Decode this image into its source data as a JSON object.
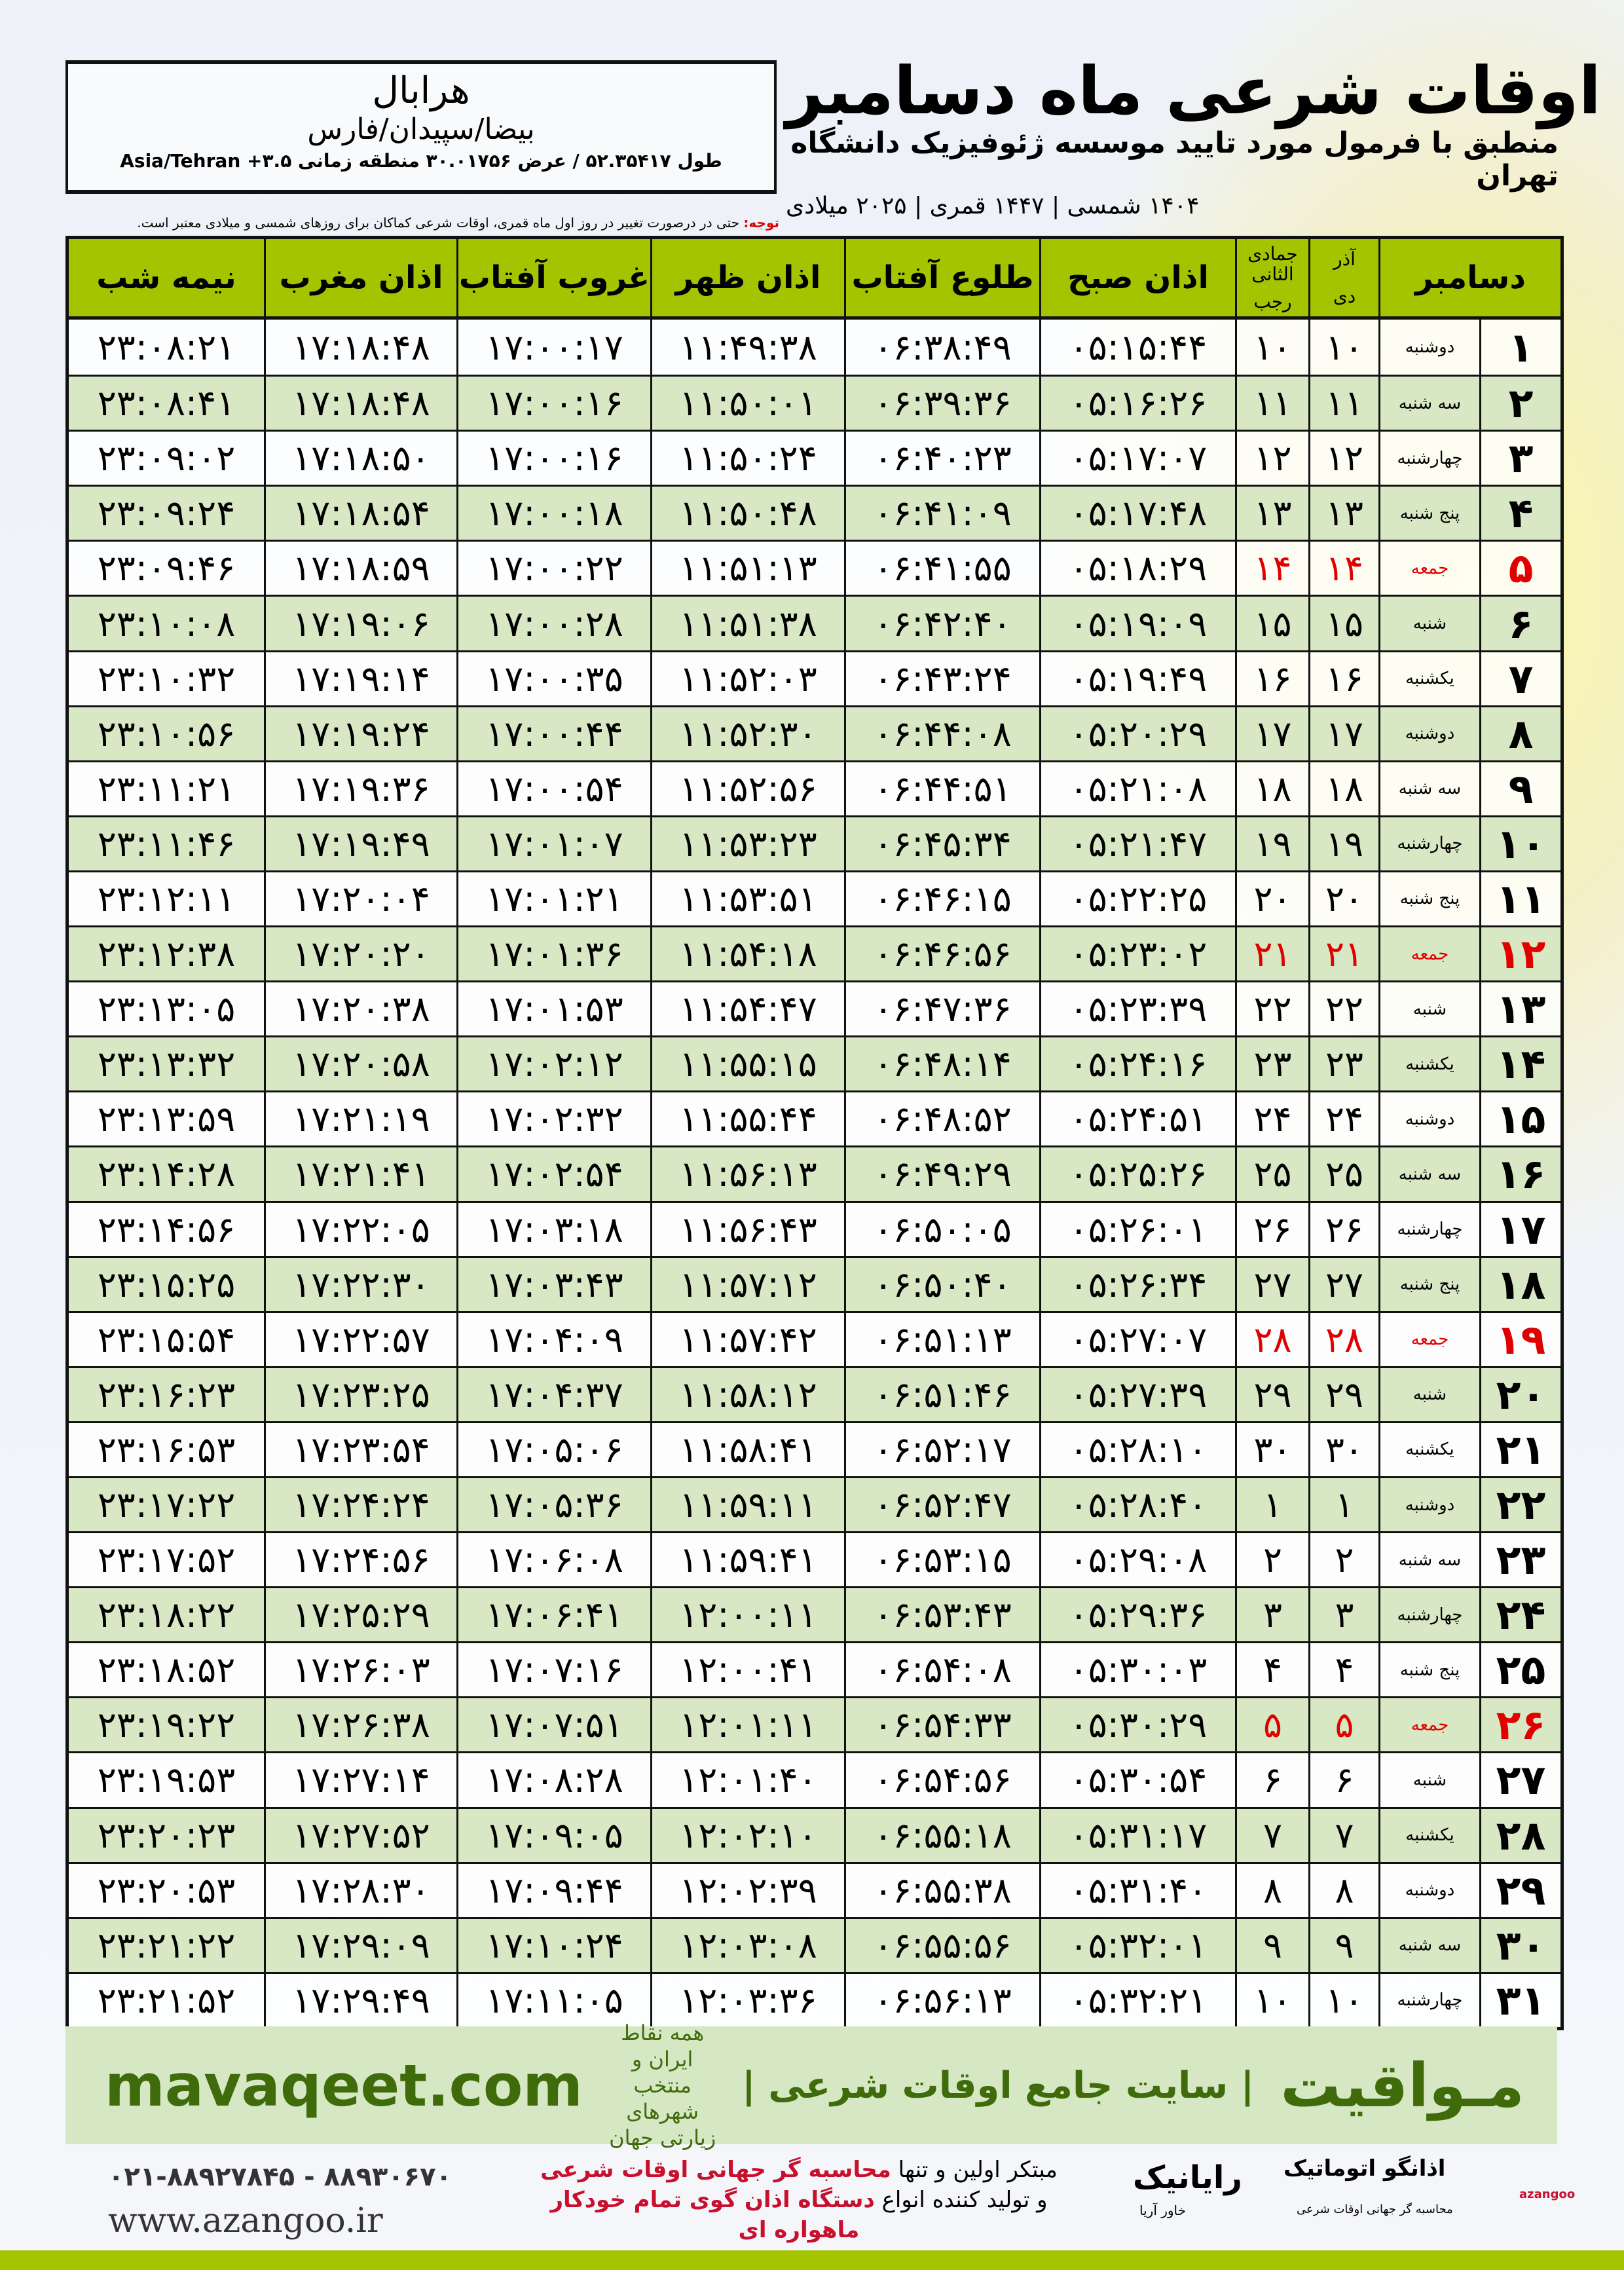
{
  "location": {
    "city": "هرابال",
    "region": "بیضا/سپیدان/فارس",
    "coords": "طول ۵۲.۳۵۴۱۷ / عرض ۳۰.۰۱۷۵۶ منطقه زمانی ۳.۵+ Asia/Tehran"
  },
  "header": {
    "title": "اوقات شرعی ماه دسامبر",
    "subtitle": "منطبق با فرمول مورد تایید موسسه ژئوفیزیک دانشگاه تهران",
    "dateline": "۱۴۰۴ شمسی | ۱۴۴۷ قمری | ۲۰۲۵ میلادی"
  },
  "note": {
    "label": "توجه:",
    "text": " حتی در درصورت تغییر در روز اول ماه قمری، اوقات شرعی کماکان برای روزهای شمسی و میلادی معتبر است."
  },
  "colors": {
    "header_green": "#a4c400",
    "row_green": "#d9e8c4",
    "friday_red": "#e00000",
    "brand_green": "#3f6b0b"
  },
  "table": {
    "columns": {
      "midnight": "نیمه شب",
      "maghrib": "اذان مغرب",
      "sunset": "غروب آفتاب",
      "dhuhr": "اذان ظهر",
      "sunrise": "طلوع آفتاب",
      "fajr": "اذان صبح",
      "hijri_top": "جمادی الثانی",
      "hijri_bottom": "رجب",
      "shamsi_top": "آذر",
      "shamsi_bottom": "دی",
      "month": "دسامبر"
    },
    "rows": [
      [
        "۱",
        "دوشنبه",
        "۱۰",
        "۱۰",
        "۰۵:۱۵:۴۴",
        "۰۶:۳۸:۴۹",
        "۱۱:۴۹:۳۸",
        "۱۷:۰۰:۱۷",
        "۱۷:۱۸:۴۸",
        "۲۳:۰۸:۲۱"
      ],
      [
        "۲",
        "سه شنبه",
        "۱۱",
        "۱۱",
        "۰۵:۱۶:۲۶",
        "۰۶:۳۹:۳۶",
        "۱۱:۵۰:۰۱",
        "۱۷:۰۰:۱۶",
        "۱۷:۱۸:۴۸",
        "۲۳:۰۸:۴۱"
      ],
      [
        "۳",
        "چهارشنبه",
        "۱۲",
        "۱۲",
        "۰۵:۱۷:۰۷",
        "۰۶:۴۰:۲۳",
        "۱۱:۵۰:۲۴",
        "۱۷:۰۰:۱۶",
        "۱۷:۱۸:۵۰",
        "۲۳:۰۹:۰۲"
      ],
      [
        "۴",
        "پنج شنبه",
        "۱۳",
        "۱۳",
        "۰۵:۱۷:۴۸",
        "۰۶:۴۱:۰۹",
        "۱۱:۵۰:۴۸",
        "۱۷:۰۰:۱۸",
        "۱۷:۱۸:۵۴",
        "۲۳:۰۹:۲۴"
      ],
      [
        "۵",
        "جمعه",
        "۱۴",
        "۱۴",
        "۰۵:۱۸:۲۹",
        "۰۶:۴۱:۵۵",
        "۱۱:۵۱:۱۳",
        "۱۷:۰۰:۲۲",
        "۱۷:۱۸:۵۹",
        "۲۳:۰۹:۴۶"
      ],
      [
        "۶",
        "شنبه",
        "۱۵",
        "۱۵",
        "۰۵:۱۹:۰۹",
        "۰۶:۴۲:۴۰",
        "۱۱:۵۱:۳۸",
        "۱۷:۰۰:۲۸",
        "۱۷:۱۹:۰۶",
        "۲۳:۱۰:۰۸"
      ],
      [
        "۷",
        "یکشنبه",
        "۱۶",
        "۱۶",
        "۰۵:۱۹:۴۹",
        "۰۶:۴۳:۲۴",
        "۱۱:۵۲:۰۳",
        "۱۷:۰۰:۳۵",
        "۱۷:۱۹:۱۴",
        "۲۳:۱۰:۳۲"
      ],
      [
        "۸",
        "دوشنبه",
        "۱۷",
        "۱۷",
        "۰۵:۲۰:۲۹",
        "۰۶:۴۴:۰۸",
        "۱۱:۵۲:۳۰",
        "۱۷:۰۰:۴۴",
        "۱۷:۱۹:۲۴",
        "۲۳:۱۰:۵۶"
      ],
      [
        "۹",
        "سه شنبه",
        "۱۸",
        "۱۸",
        "۰۵:۲۱:۰۸",
        "۰۶:۴۴:۵۱",
        "۱۱:۵۲:۵۶",
        "۱۷:۰۰:۵۴",
        "۱۷:۱۹:۳۶",
        "۲۳:۱۱:۲۱"
      ],
      [
        "۱۰",
        "چهارشنبه",
        "۱۹",
        "۱۹",
        "۰۵:۲۱:۴۷",
        "۰۶:۴۵:۳۴",
        "۱۱:۵۳:۲۳",
        "۱۷:۰۱:۰۷",
        "۱۷:۱۹:۴۹",
        "۲۳:۱۱:۴۶"
      ],
      [
        "۱۱",
        "پنج شنبه",
        "۲۰",
        "۲۰",
        "۰۵:۲۲:۲۵",
        "۰۶:۴۶:۱۵",
        "۱۱:۵۳:۵۱",
        "۱۷:۰۱:۲۱",
        "۱۷:۲۰:۰۴",
        "۲۳:۱۲:۱۱"
      ],
      [
        "۱۲",
        "جمعه",
        "۲۱",
        "۲۱",
        "۰۵:۲۳:۰۲",
        "۰۶:۴۶:۵۶",
        "۱۱:۵۴:۱۸",
        "۱۷:۰۱:۳۶",
        "۱۷:۲۰:۲۰",
        "۲۳:۱۲:۳۸"
      ],
      [
        "۱۳",
        "شنبه",
        "۲۲",
        "۲۲",
        "۰۵:۲۳:۳۹",
        "۰۶:۴۷:۳۶",
        "۱۱:۵۴:۴۷",
        "۱۷:۰۱:۵۳",
        "۱۷:۲۰:۳۸",
        "۲۳:۱۳:۰۵"
      ],
      [
        "۱۴",
        "یکشنبه",
        "۲۳",
        "۲۳",
        "۰۵:۲۴:۱۶",
        "۰۶:۴۸:۱۴",
        "۱۱:۵۵:۱۵",
        "۱۷:۰۲:۱۲",
        "۱۷:۲۰:۵۸",
        "۲۳:۱۳:۳۲"
      ],
      [
        "۱۵",
        "دوشنبه",
        "۲۴",
        "۲۴",
        "۰۵:۲۴:۵۱",
        "۰۶:۴۸:۵۲",
        "۱۱:۵۵:۴۴",
        "۱۷:۰۲:۳۲",
        "۱۷:۲۱:۱۹",
        "۲۳:۱۳:۵۹"
      ],
      [
        "۱۶",
        "سه شنبه",
        "۲۵",
        "۲۵",
        "۰۵:۲۵:۲۶",
        "۰۶:۴۹:۲۹",
        "۱۱:۵۶:۱۳",
        "۱۷:۰۲:۵۴",
        "۱۷:۲۱:۴۱",
        "۲۳:۱۴:۲۸"
      ],
      [
        "۱۷",
        "چهارشنبه",
        "۲۶",
        "۲۶",
        "۰۵:۲۶:۰۱",
        "۰۶:۵۰:۰۵",
        "۱۱:۵۶:۴۳",
        "۱۷:۰۳:۱۸",
        "۱۷:۲۲:۰۵",
        "۲۳:۱۴:۵۶"
      ],
      [
        "۱۸",
        "پنج شنبه",
        "۲۷",
        "۲۷",
        "۰۵:۲۶:۳۴",
        "۰۶:۵۰:۴۰",
        "۱۱:۵۷:۱۲",
        "۱۷:۰۳:۴۳",
        "۱۷:۲۲:۳۰",
        "۲۳:۱۵:۲۵"
      ],
      [
        "۱۹",
        "جمعه",
        "۲۸",
        "۲۸",
        "۰۵:۲۷:۰۷",
        "۰۶:۵۱:۱۳",
        "۱۱:۵۷:۴۲",
        "۱۷:۰۴:۰۹",
        "۱۷:۲۲:۵۷",
        "۲۳:۱۵:۵۴"
      ],
      [
        "۲۰",
        "شنبه",
        "۲۹",
        "۲۹",
        "۰۵:۲۷:۳۹",
        "۰۶:۵۱:۴۶",
        "۱۱:۵۸:۱۲",
        "۱۷:۰۴:۳۷",
        "۱۷:۲۳:۲۵",
        "۲۳:۱۶:۲۳"
      ],
      [
        "۲۱",
        "یکشنبه",
        "۳۰",
        "۳۰",
        "۰۵:۲۸:۱۰",
        "۰۶:۵۲:۱۷",
        "۱۱:۵۸:۴۱",
        "۱۷:۰۵:۰۶",
        "۱۷:۲۳:۵۴",
        "۲۳:۱۶:۵۳"
      ],
      [
        "۲۲",
        "دوشنبه",
        "۱",
        "۱",
        "۰۵:۲۸:۴۰",
        "۰۶:۵۲:۴۷",
        "۱۱:۵۹:۱۱",
        "۱۷:۰۵:۳۶",
        "۱۷:۲۴:۲۴",
        "۲۳:۱۷:۲۲"
      ],
      [
        "۲۳",
        "سه شنبه",
        "۲",
        "۲",
        "۰۵:۲۹:۰۸",
        "۰۶:۵۳:۱۵",
        "۱۱:۵۹:۴۱",
        "۱۷:۰۶:۰۸",
        "۱۷:۲۴:۵۶",
        "۲۳:۱۷:۵۲"
      ],
      [
        "۲۴",
        "چهارشنبه",
        "۳",
        "۳",
        "۰۵:۲۹:۳۶",
        "۰۶:۵۳:۴۳",
        "۱۲:۰۰:۱۱",
        "۱۷:۰۶:۴۱",
        "۱۷:۲۵:۲۹",
        "۲۳:۱۸:۲۲"
      ],
      [
        "۲۵",
        "پنج شنبه",
        "۴",
        "۴",
        "۰۵:۳۰:۰۳",
        "۰۶:۵۴:۰۸",
        "۱۲:۰۰:۴۱",
        "۱۷:۰۷:۱۶",
        "۱۷:۲۶:۰۳",
        "۲۳:۱۸:۵۲"
      ],
      [
        "۲۶",
        "جمعه",
        "۵",
        "۵",
        "۰۵:۳۰:۲۹",
        "۰۶:۵۴:۳۳",
        "۱۲:۰۱:۱۱",
        "۱۷:۰۷:۵۱",
        "۱۷:۲۶:۳۸",
        "۲۳:۱۹:۲۲"
      ],
      [
        "۲۷",
        "شنبه",
        "۶",
        "۶",
        "۰۵:۳۰:۵۴",
        "۰۶:۵۴:۵۶",
        "۱۲:۰۱:۴۰",
        "۱۷:۰۸:۲۸",
        "۱۷:۲۷:۱۴",
        "۲۳:۱۹:۵۳"
      ],
      [
        "۲۸",
        "یکشنبه",
        "۷",
        "۷",
        "۰۵:۳۱:۱۷",
        "۰۶:۵۵:۱۸",
        "۱۲:۰۲:۱۰",
        "۱۷:۰۹:۰۵",
        "۱۷:۲۷:۵۲",
        "۲۳:۲۰:۲۳"
      ],
      [
        "۲۹",
        "دوشنبه",
        "۸",
        "۸",
        "۰۵:۳۱:۴۰",
        "۰۶:۵۵:۳۸",
        "۱۲:۰۲:۳۹",
        "۱۷:۰۹:۴۴",
        "۱۷:۲۸:۳۰",
        "۲۳:۲۰:۵۳"
      ],
      [
        "۳۰",
        "سه شنبه",
        "۹",
        "۹",
        "۰۵:۳۲:۰۱",
        "۰۶:۵۵:۵۶",
        "۱۲:۰۳:۰۸",
        "۱۷:۱۰:۲۴",
        "۱۷:۲۹:۰۹",
        "۲۳:۲۱:۲۲"
      ],
      [
        "۳۱",
        "چهارشنبه",
        "۱۰",
        "۱۰",
        "۰۵:۳۲:۲۱",
        "۰۶:۵۶:۱۳",
        "۱۲:۰۳:۳۶",
        "۱۷:۱۱:۰۵",
        "۱۷:۲۹:۴۹",
        "۲۳:۲۱:۵۲"
      ]
    ]
  },
  "footer": {
    "mavaqeet_url": "mavaqeet.com",
    "mavaqeet_tagline": "همه نقاط ایران و منتخب شهرهای زیارتی جهان",
    "mavaqeet_name": "| سایت جامع اوقات شرعی |",
    "mavaqeet_logo": "مـواقیت",
    "phone": "۰۲۱-۸۸۹۲۷۸۴۵ - ۸۸۹۳۰۶۷۰",
    "website": "www.azangoo.ir",
    "promo_line1_a": "مبتکر اولین و تنها ",
    "promo_line1_b": "محاسبه گر جهانی اوقات شرعی",
    "promo_line2_a": "و تولید کننده انواع ",
    "promo_line2_b": "دستگاه اذان گوی تمام خودکار ماهواره ای",
    "rayanik": "رایانیک",
    "rayanik_sub": "خاور آریا",
    "azangoo_logo": "اذانگو اتوماتیک",
    "azangoo_en": "azangoo",
    "azangoo_sub": "محاسبه گر جهانی اوقات شرعی"
  }
}
